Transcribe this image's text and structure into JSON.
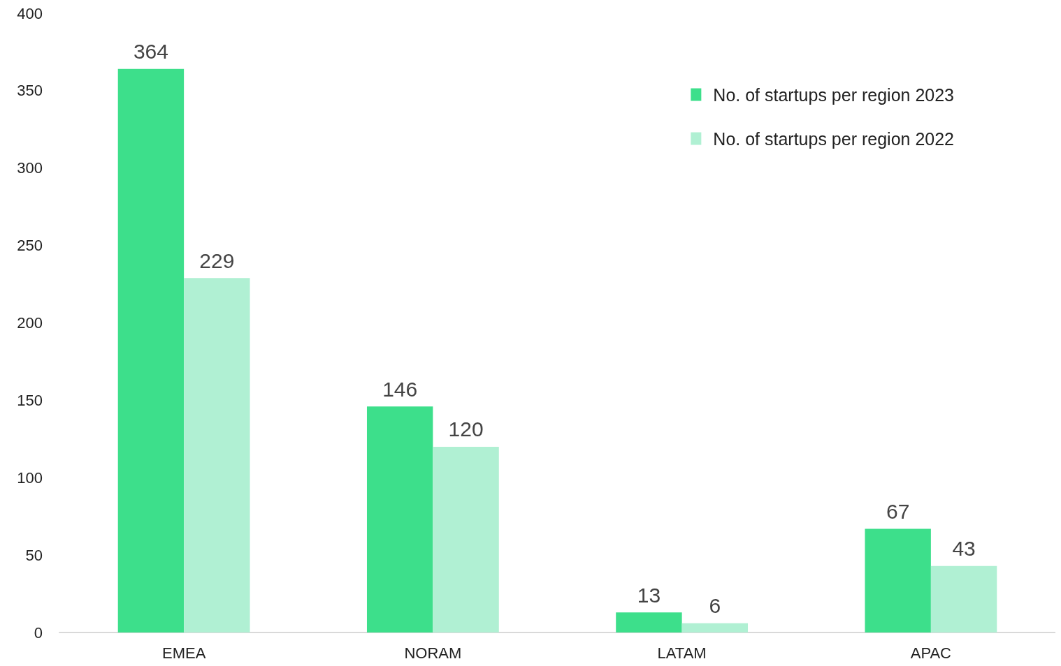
{
  "chart_data": {
    "type": "bar",
    "categories": [
      "EMEA",
      "NORAM",
      "LATAM",
      "APAC"
    ],
    "series": [
      {
        "name": "No. of startups per region 2023",
        "color": "#3ddf8b",
        "values": [
          364,
          146,
          13,
          67
        ]
      },
      {
        "name": "No. of startups per region 2022",
        "color": "#b0f0d3",
        "values": [
          229,
          120,
          6,
          43
        ]
      }
    ],
    "ylim": [
      0,
      400
    ],
    "yticks": [
      0,
      50,
      100,
      150,
      200,
      250,
      300,
      350,
      400
    ],
    "grid": false,
    "legend": "top right",
    "data_labels": true
  }
}
